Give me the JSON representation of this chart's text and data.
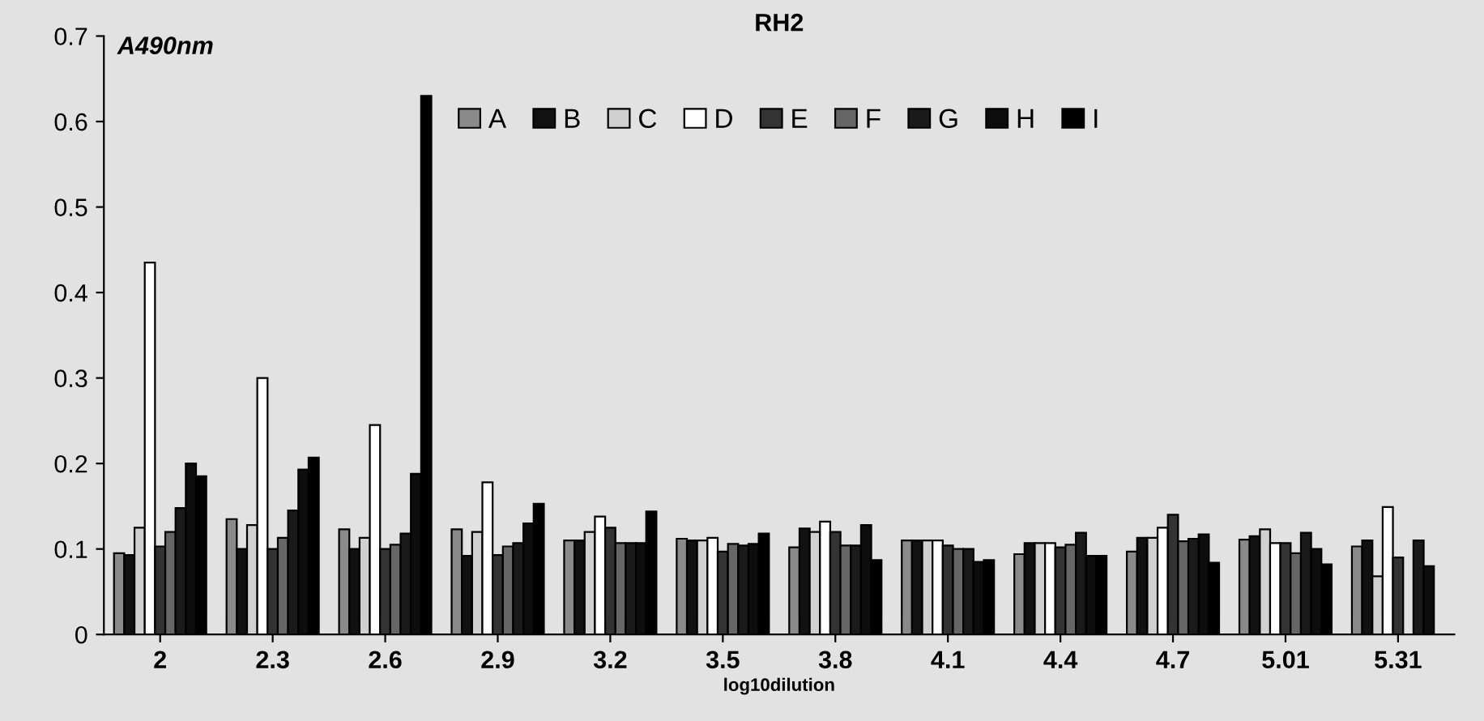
{
  "chart_data": {
    "type": "bar",
    "title": "RH2",
    "ylabel": "A490nm",
    "xlabel": "log10dilution",
    "categories": [
      "2",
      "2.3",
      "2.6",
      "2.9",
      "3.2",
      "3.5",
      "3.8",
      "4.1",
      "4.4",
      "4.7",
      "5.01",
      "5.31"
    ],
    "ylim": [
      0,
      0.7
    ],
    "yticks": [
      0,
      0.1,
      0.2,
      0.3,
      0.4,
      0.5,
      0.6,
      0.7
    ],
    "grid": false,
    "legend": "top",
    "series": [
      {
        "name": "A",
        "color": "#8a8a8a",
        "values": [
          0.095,
          0.135,
          0.123,
          0.123,
          0.11,
          0.112,
          0.102,
          0.11,
          0.094,
          0.097,
          0.111,
          0.103
        ]
      },
      {
        "name": "B",
        "color": "#111111",
        "values": [
          0.093,
          0.1,
          0.1,
          0.092,
          0.11,
          0.11,
          0.124,
          0.11,
          0.107,
          0.113,
          0.115,
          0.11
        ]
      },
      {
        "name": "C",
        "color": "#d0d0d0",
        "values": [
          0.125,
          0.128,
          0.113,
          0.12,
          0.12,
          0.11,
          0.12,
          0.11,
          0.107,
          0.113,
          0.123,
          0.068
        ]
      },
      {
        "name": "D",
        "color": "#ffffff",
        "values": [
          0.435,
          0.3,
          0.245,
          0.178,
          0.138,
          0.113,
          0.132,
          0.11,
          0.107,
          0.125,
          0.107,
          0.149
        ]
      },
      {
        "name": "E",
        "color": "#333333",
        "values": [
          0.103,
          0.1,
          0.1,
          0.093,
          0.125,
          0.097,
          0.12,
          0.104,
          0.102,
          0.14,
          0.107,
          0.09
        ]
      },
      {
        "name": "F",
        "color": "#666666",
        "values": [
          0.12,
          0.113,
          0.105,
          0.103,
          0.107,
          0.106,
          0.104,
          0.1,
          0.105,
          0.109,
          0.095,
          null
        ]
      },
      {
        "name": "G",
        "color": "#1a1a1a",
        "values": [
          0.148,
          0.145,
          0.118,
          0.107,
          0.107,
          0.104,
          0.104,
          0.1,
          0.119,
          0.112,
          0.119,
          0.11
        ]
      },
      {
        "name": "H",
        "color": "#0d0d0d",
        "values": [
          0.2,
          0.193,
          0.188,
          0.13,
          0.107,
          0.106,
          0.128,
          0.085,
          0.092,
          0.117,
          0.1,
          0.08
        ]
      },
      {
        "name": "I",
        "color": "#000000",
        "values": [
          0.185,
          0.207,
          0.63,
          0.153,
          0.144,
          0.118,
          0.087,
          0.087,
          0.092,
          0.084,
          0.082,
          null
        ]
      }
    ]
  }
}
